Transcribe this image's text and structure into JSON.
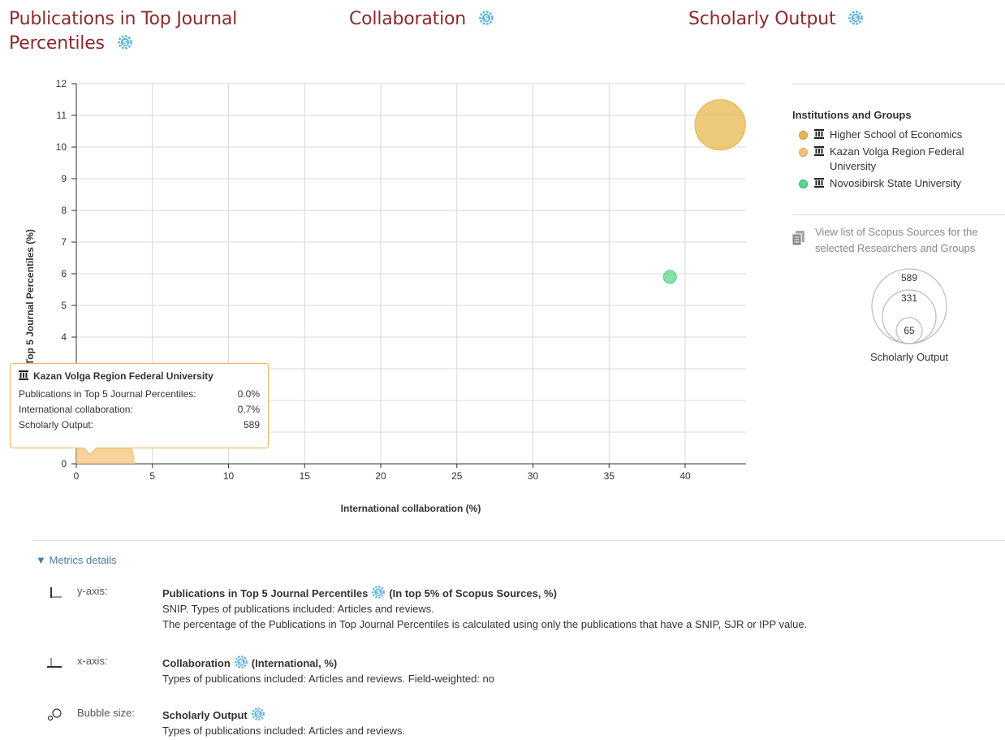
{
  "header": {
    "metrics": [
      {
        "line1": "Publications in Top Journal",
        "line2": "Percentiles"
      },
      {
        "line1": "Collaboration",
        "line2": ""
      },
      {
        "line1": "Scholarly Output",
        "line2": ""
      }
    ]
  },
  "chart_data": {
    "type": "scatter",
    "ylabel": "Publications in Top 5 Journal Percentiles (%)",
    "xlabel": "International collaboration (%)",
    "xlim": [
      0,
      44
    ],
    "ylim": [
      0,
      12
    ],
    "xticks": [
      "0",
      "5",
      "10",
      "15",
      "20",
      "25",
      "30",
      "35",
      "40"
    ],
    "yticks": [
      "0",
      "1",
      "2",
      "3",
      "4",
      "5",
      "6",
      "7",
      "8",
      "9",
      "10",
      "11",
      "12"
    ],
    "grid": true,
    "series": [
      {
        "name": "Higher School of Economics",
        "x": 42.3,
        "y": 10.7,
        "size": 331,
        "color": "#e7b84f"
      },
      {
        "name": "Kazan Volga Region Federal University",
        "x": 0.7,
        "y": 0.0,
        "size": 589,
        "color": "#f5c27c"
      },
      {
        "name": "Novosibirsk State University",
        "x": 39.0,
        "y": 5.9,
        "size": 65,
        "color": "#5cd68f"
      }
    ]
  },
  "legend": {
    "title": "Institutions and Groups",
    "items": [
      {
        "label": "Higher School of Economics",
        "color": "#e7b84f"
      },
      {
        "label": "Kazan Volga Region Federal University",
        "color": "#f5c27c"
      },
      {
        "label": "Novosibirsk State University",
        "color": "#5cd68f"
      }
    ],
    "sources_link": "View list of Scopus Sources for the selected Researchers and Groups",
    "bubble_key": {
      "values": [
        "589",
        "331",
        "65"
      ],
      "label": "Scholarly Output"
    }
  },
  "tooltip": {
    "title": "Kazan Volga Region Federal University",
    "rows": [
      {
        "label": "Publications in Top 5 Journal Percentiles:",
        "value": "0.0%"
      },
      {
        "label": "International collaboration:",
        "value": "0.7%"
      },
      {
        "label": "Scholarly Output:",
        "value": "589"
      }
    ]
  },
  "metrics_details": {
    "toggle": "▼ Metrics details",
    "y_axis": {
      "label": "y-axis:",
      "title": "Publications in Top 5 Journal Percentiles",
      "qualifier": "(In top 5% of Scopus Sources, %)",
      "line1": "SNIP. Types of publications included: Articles and reviews.",
      "line2": "The percentage of the Publications in Top Journal Percentiles is calculated using only the publications that have a SNIP, SJR or IPP value."
    },
    "x_axis": {
      "label": "x-axis:",
      "title": "Collaboration",
      "qualifier": "(International, %)",
      "line1": "Types of publications included: Articles and reviews. Field-weighted: no"
    },
    "bubble": {
      "label": "Bubble size:",
      "title": "Scholarly Output",
      "line1": "Types of publications included: Articles and reviews."
    }
  }
}
